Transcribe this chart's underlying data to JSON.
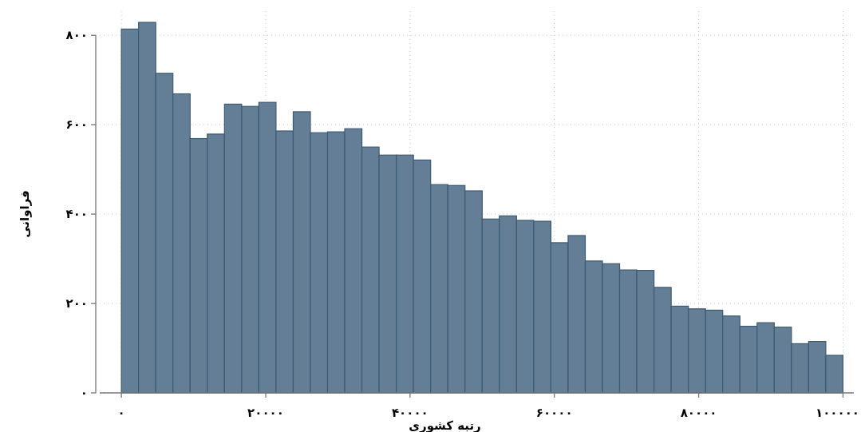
{
  "chart_data": {
    "type": "histogram",
    "xlabel": "رتبه کشوری",
    "ylabel": "فراوانی",
    "bins": [
      0,
      2381,
      4762,
      7143,
      9524,
      11905,
      14286,
      16667,
      19048,
      21429,
      23810,
      26190,
      28571,
      30952,
      33333,
      35714,
      38095,
      40476,
      42857,
      45238,
      47619,
      50000,
      52381,
      54762,
      57143,
      59524,
      61905,
      64286,
      66667,
      69048,
      71429,
      73810,
      76190,
      78571,
      80952,
      83333,
      85714,
      88095,
      90476,
      92857,
      95238,
      97619,
      100000
    ],
    "values": [
      814,
      829,
      715,
      669,
      569,
      579,
      646,
      641,
      650,
      586,
      629,
      582,
      584,
      591,
      550,
      532,
      532,
      521,
      466,
      464,
      452,
      389,
      396,
      386,
      384,
      336,
      352,
      295,
      289,
      275,
      274,
      236,
      194,
      188,
      185,
      172,
      149,
      157,
      147,
      110,
      115,
      84
    ],
    "color": "#647f95",
    "xlim": [
      -3000,
      101500
    ],
    "ylim": [
      0,
      854
    ],
    "xticks": [
      {
        "value": 0,
        "label": "۰"
      },
      {
        "value": 20000,
        "label": "۲۰۰۰۰"
      },
      {
        "value": 40000,
        "label": "۴۰۰۰۰"
      },
      {
        "value": 60000,
        "label": "۶۰۰۰۰"
      },
      {
        "value": 80000,
        "label": "۸۰۰۰۰"
      },
      {
        "value": 100000,
        "label": "۱۰۰۰۰۰"
      }
    ],
    "yticks": [
      {
        "value": 0,
        "label": "۰"
      },
      {
        "value": 200,
        "label": "۲۰۰"
      },
      {
        "value": 400,
        "label": "۴۰۰"
      },
      {
        "value": 600,
        "label": "۶۰۰"
      },
      {
        "value": 800,
        "label": "۸۰۰"
      }
    ],
    "grid": true
  }
}
